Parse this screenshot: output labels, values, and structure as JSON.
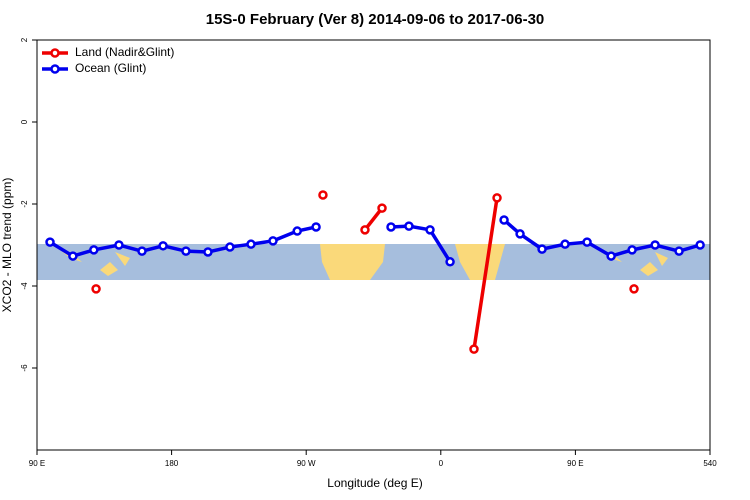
{
  "chart_data": {
    "type": "line",
    "title": "15S-0 February (Ver 8)   2014-09-06 to 2017-06-30",
    "x_label": "Longitude (deg E)",
    "y_label": "XCO2 - MLO trend (ppm)",
    "xlim": [
      90,
      540
    ],
    "xticks": [
      {
        "value": 90,
        "label": "90 E"
      },
      180,
      {
        "value": 270,
        "label": "90 W"
      },
      {
        "value": 360,
        "label": "0"
      },
      {
        "value": 450,
        "label": "90 E"
      },
      540
    ],
    "ylim": [
      -8,
      2
    ],
    "yticks": [
      2,
      0,
      -2,
      -4,
      -6
    ],
    "legend": "top-left",
    "series": [
      {
        "name": "Land (Nadir&Glint)",
        "color": "#ee0000",
        "x": [
          129.5,
          null,
          281.2,
          null,
          309.3,
          320.7,
          null,
          382.2,
          397.6,
          null,
          489.2
        ],
        "values": [
          -4.07,
          null,
          -1.78,
          null,
          -2.63,
          -2.1,
          null,
          -5.54,
          -1.85,
          null,
          -4.07
        ]
      },
      {
        "name": "Ocean (Glint)",
        "color": "#0000ee",
        "x": [
          98.7,
          114,
          128,
          144.8,
          160.2,
          174.3,
          189.6,
          204.3,
          219,
          233.1,
          247.8,
          264,
          276.6,
          null,
          326.7,
          338.7,
          352.8,
          366.2,
          null,
          402.3,
          413,
          427.7,
          443.1,
          457.8,
          473.9,
          487.9,
          503.3,
          519.3,
          533.4
        ],
        "values": [
          -2.93,
          -3.27,
          -3.12,
          -3.0,
          -3.15,
          -3.02,
          -3.15,
          -3.17,
          -3.05,
          -2.98,
          -2.9,
          -2.66,
          -2.56,
          null,
          -2.56,
          -2.54,
          -2.63,
          -3.41,
          null,
          -2.39,
          -2.73,
          -3.1,
          -2.98,
          -2.93,
          -3.27,
          -3.12,
          -3.0,
          -3.15,
          -3.0
        ]
      }
    ]
  }
}
